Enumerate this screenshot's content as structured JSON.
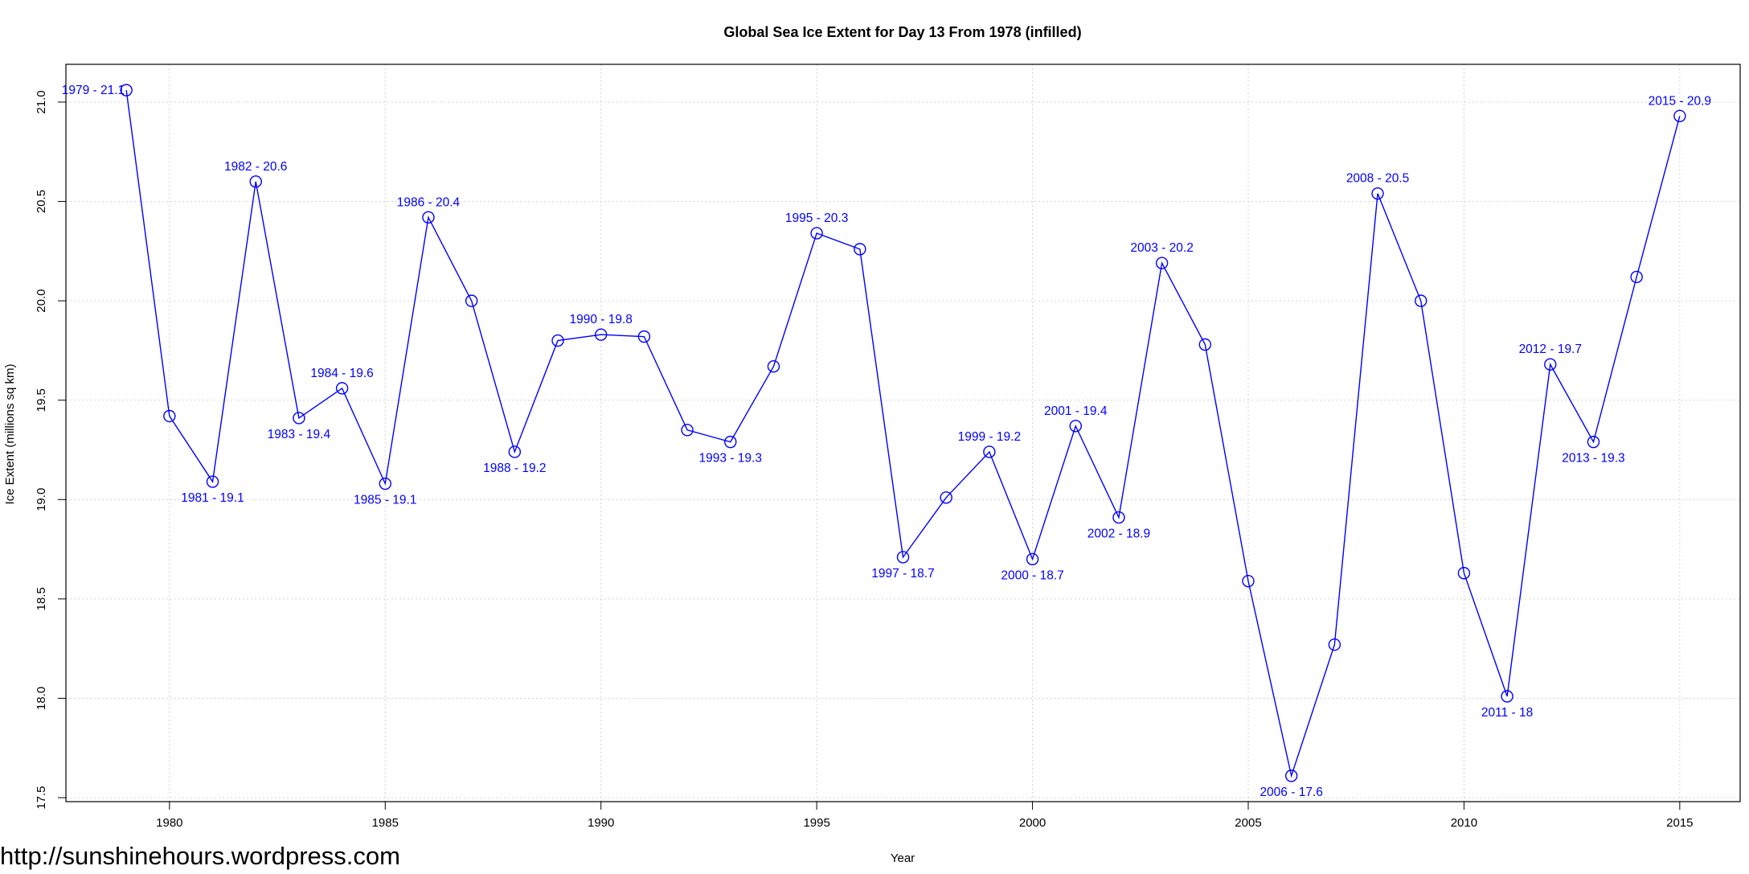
{
  "chart_data": {
    "type": "line",
    "title": "Global Sea Ice Extent for Day 13 From 1978 (infilled)",
    "x_label": "Year",
    "y_label": "Ice Extent (millions sq km)",
    "watermark": "http://sunshinehours.wordpress.com",
    "x": [
      1979,
      1980,
      1981,
      1982,
      1983,
      1984,
      1985,
      1986,
      1987,
      1988,
      1989,
      1990,
      1991,
      1992,
      1993,
      1994,
      1995,
      1996,
      1997,
      1998,
      1999,
      2000,
      2001,
      2002,
      2003,
      2004,
      2005,
      2006,
      2007,
      2008,
      2009,
      2010,
      2011,
      2012,
      2013,
      2014,
      2015
    ],
    "series": [
      {
        "name": "Ice Extent",
        "color": "#0000ff",
        "values": [
          21.06,
          19.42,
          19.09,
          20.6,
          19.41,
          19.56,
          19.08,
          20.42,
          20.0,
          19.24,
          19.8,
          19.83,
          19.82,
          19.35,
          19.29,
          19.67,
          20.34,
          20.26,
          18.71,
          19.01,
          19.24,
          18.7,
          19.37,
          18.91,
          20.19,
          19.78,
          18.59,
          17.61,
          18.27,
          20.54,
          20.0,
          18.63,
          18.01,
          19.68,
          19.29,
          20.12,
          20.93
        ],
        "value_labels": [
          "1979 - 21.1",
          null,
          "1981 - 19.1",
          "1982 - 20.6",
          "1983 - 19.4",
          "1984 - 19.6",
          "1985 - 19.1",
          "1986 - 20.4",
          null,
          "1988 - 19.2",
          null,
          "1990 - 19.8",
          null,
          null,
          "1993 - 19.3",
          null,
          "1995 - 20.3",
          null,
          "1997 - 18.7",
          null,
          "1999 - 19.2",
          "2000 - 18.7",
          "2001 - 19.4",
          "2002 - 18.9",
          "2003 - 20.2",
          null,
          null,
          "2006 - 17.6",
          null,
          "2008 - 20.5",
          null,
          null,
          "2011 - 18",
          "2012 - 19.7",
          "2013 - 19.3",
          null,
          "2015 - 20.9"
        ]
      }
    ],
    "xlim": [
      1977.6,
      2016.4
    ],
    "ylim": [
      17.48,
      21.19
    ],
    "xticks": [
      1980,
      1985,
      1990,
      1995,
      2000,
      2005,
      2010,
      2015
    ],
    "yticks": [
      17.5,
      {
        "value": 18,
        "label": "18.0"
      },
      18.5,
      {
        "value": 19,
        "label": "19.0"
      },
      19.5,
      {
        "value": 20,
        "label": "20.0"
      },
      20.5,
      {
        "value": 21,
        "label": "21.0"
      }
    ],
    "grid": true
  }
}
